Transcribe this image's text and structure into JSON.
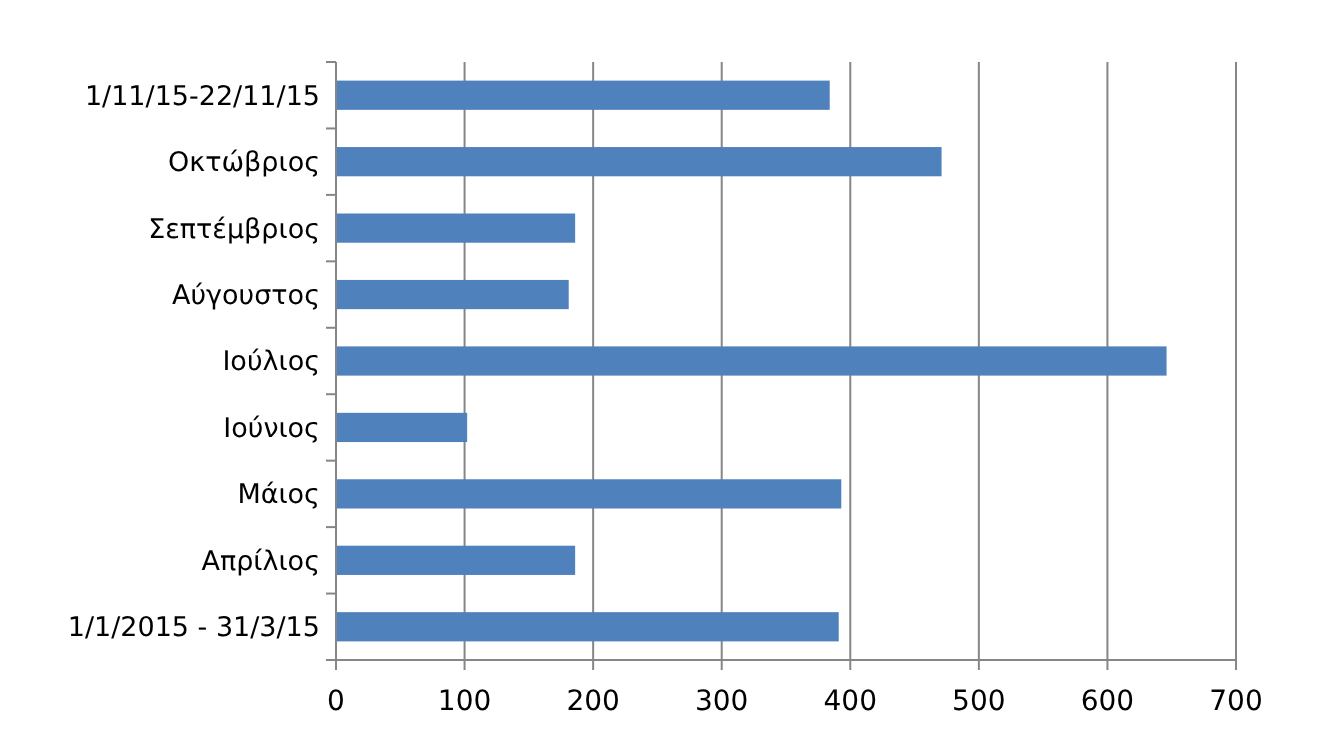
{
  "chart_data": {
    "type": "bar",
    "orientation": "horizontal",
    "categories": [
      "1/11/15-22/11/15",
      "Οκτώβριος",
      "Σεπτέμβριος",
      "Αύγουστος",
      "Ιούλιος",
      "Ιούνιος",
      "Μάιος",
      "Απρίλιος",
      "1/1/2015 - 31/3/15"
    ],
    "values": [
      384,
      471,
      186,
      181,
      646,
      102,
      393,
      186,
      391
    ],
    "color": "#4f81bd",
    "xlim": [
      0,
      700
    ],
    "xticks": [
      0,
      100,
      200,
      300,
      400,
      500,
      600,
      700
    ],
    "grid": "x"
  }
}
